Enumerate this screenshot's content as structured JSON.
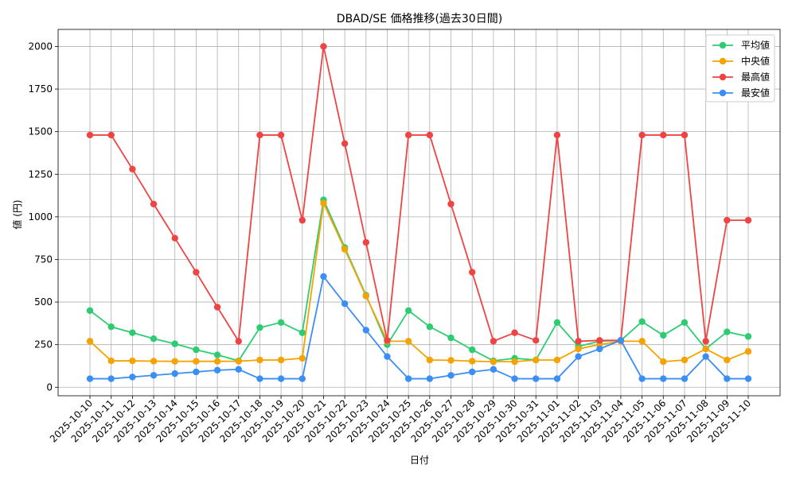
{
  "chart_data": {
    "type": "line",
    "title": "DBAD/SE 価格推移(過去30日間)",
    "xlabel": "日付",
    "ylabel": "値 (円)",
    "ylim": [
      -50,
      2100
    ],
    "yticks": [
      0,
      250,
      500,
      750,
      1000,
      1250,
      1500,
      1750,
      2000
    ],
    "grid": true,
    "legend_position": "top-right",
    "categories": [
      "2025-10-10",
      "2025-10-11",
      "2025-10-12",
      "2025-10-13",
      "2025-10-14",
      "2025-10-15",
      "2025-10-16",
      "2025-10-17",
      "2025-10-18",
      "2025-10-19",
      "2025-10-20",
      "2025-10-21",
      "2025-10-22",
      "2025-10-23",
      "2025-10-24",
      "2025-10-25",
      "2025-10-26",
      "2025-10-27",
      "2025-10-28",
      "2025-10-29",
      "2025-10-30",
      "2025-10-31",
      "2025-11-01",
      "2025-11-02",
      "2025-11-03",
      "2025-11-04",
      "2025-11-05",
      "2025-11-06",
      "2025-11-07",
      "2025-11-08",
      "2025-11-09",
      "2025-11-10"
    ],
    "series": [
      {
        "name": "平均値",
        "color": "#2ecc71",
        "values": [
          450,
          355,
          320,
          285,
          255,
          220,
          190,
          155,
          350,
          380,
          320,
          1100,
          820,
          540,
          250,
          450,
          355,
          290,
          220,
          155,
          170,
          160,
          380,
          240,
          270,
          275,
          385,
          305,
          380,
          225,
          325,
          298
        ]
      },
      {
        "name": "中央値",
        "color": "#f5a300",
        "values": [
          270,
          155,
          155,
          153,
          152,
          152,
          152,
          153,
          160,
          160,
          170,
          1080,
          810,
          535,
          270,
          270,
          160,
          158,
          153,
          150,
          150,
          160,
          160,
          225,
          250,
          270,
          270,
          150,
          160,
          225,
          160,
          210
        ]
      },
      {
        "name": "最高値",
        "color": "#ef4444",
        "values": [
          1480,
          1480,
          1280,
          1075,
          875,
          675,
          470,
          270,
          1480,
          1480,
          980,
          2000,
          1430,
          850,
          275,
          1480,
          1480,
          1075,
          675,
          270,
          320,
          275,
          1480,
          270,
          275,
          275,
          1480,
          1480,
          1480,
          270,
          980,
          980
        ]
      },
      {
        "name": "最安値",
        "color": "#3b8ef3",
        "values": [
          50,
          50,
          60,
          70,
          80,
          90,
          100,
          105,
          50,
          50,
          50,
          650,
          490,
          335,
          180,
          50,
          50,
          70,
          90,
          105,
          50,
          50,
          50,
          180,
          225,
          275,
          50,
          50,
          50,
          180,
          50,
          50
        ]
      }
    ]
  }
}
